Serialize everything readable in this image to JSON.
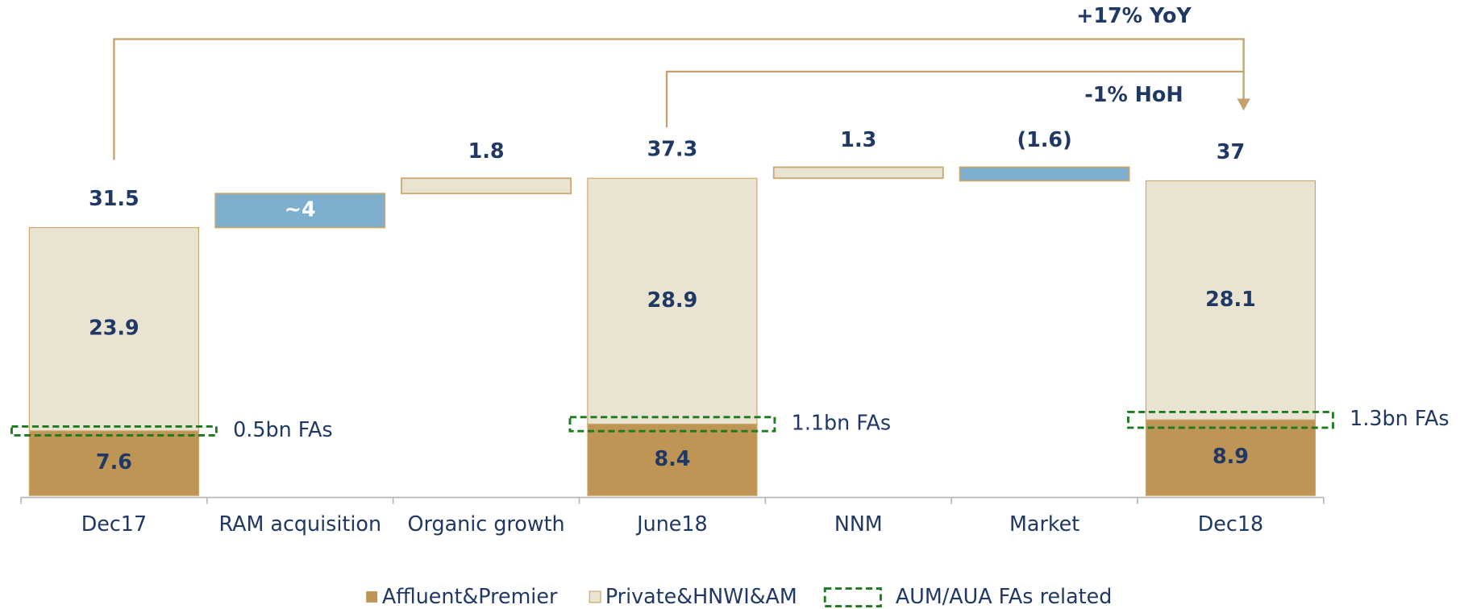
{
  "chart_data": {
    "type": "waterfall",
    "categories": [
      "Dec17",
      "RAM acquisition",
      "Organic growth",
      "June18",
      "NNM",
      "Market",
      "Dec18"
    ],
    "series": [
      {
        "name": "Affluent&Premier",
        "color": "#bf9556",
        "values": [
          7.6,
          null,
          null,
          8.4,
          null,
          null,
          8.9
        ]
      },
      {
        "name": "Private&HNWI&AM",
        "color": "#e9e3d1",
        "values": [
          23.9,
          null,
          null,
          28.9,
          null,
          null,
          28.1
        ]
      }
    ],
    "totals": [
      31.5,
      null,
      null,
      37.3,
      null,
      null,
      37.0
    ],
    "changes": [
      null,
      4,
      1.8,
      null,
      1.3,
      -1.6,
      null
    ],
    "change_labels": [
      null,
      "~4",
      null,
      null,
      null,
      "(1.6)",
      null
    ],
    "change_colors": [
      null,
      "#7fafcf",
      "#e9e3d1",
      null,
      "#e9e3d1",
      "#7fafcf",
      null
    ],
    "fas": {
      "name": "AUM/AUA FAs related",
      "color": "#1e7a1e",
      "values": [
        0.5,
        null,
        null,
        1.1,
        null,
        null,
        1.3
      ],
      "value_labels": [
        "0.5bn FAs",
        null,
        null,
        "1.1bn FAs",
        null,
        null,
        "1.3bn FAs"
      ]
    },
    "annotations": [
      {
        "text": "+17% YoY"
      },
      {
        "text": "-1% HoH"
      }
    ],
    "ylim": [
      0,
      40
    ]
  }
}
